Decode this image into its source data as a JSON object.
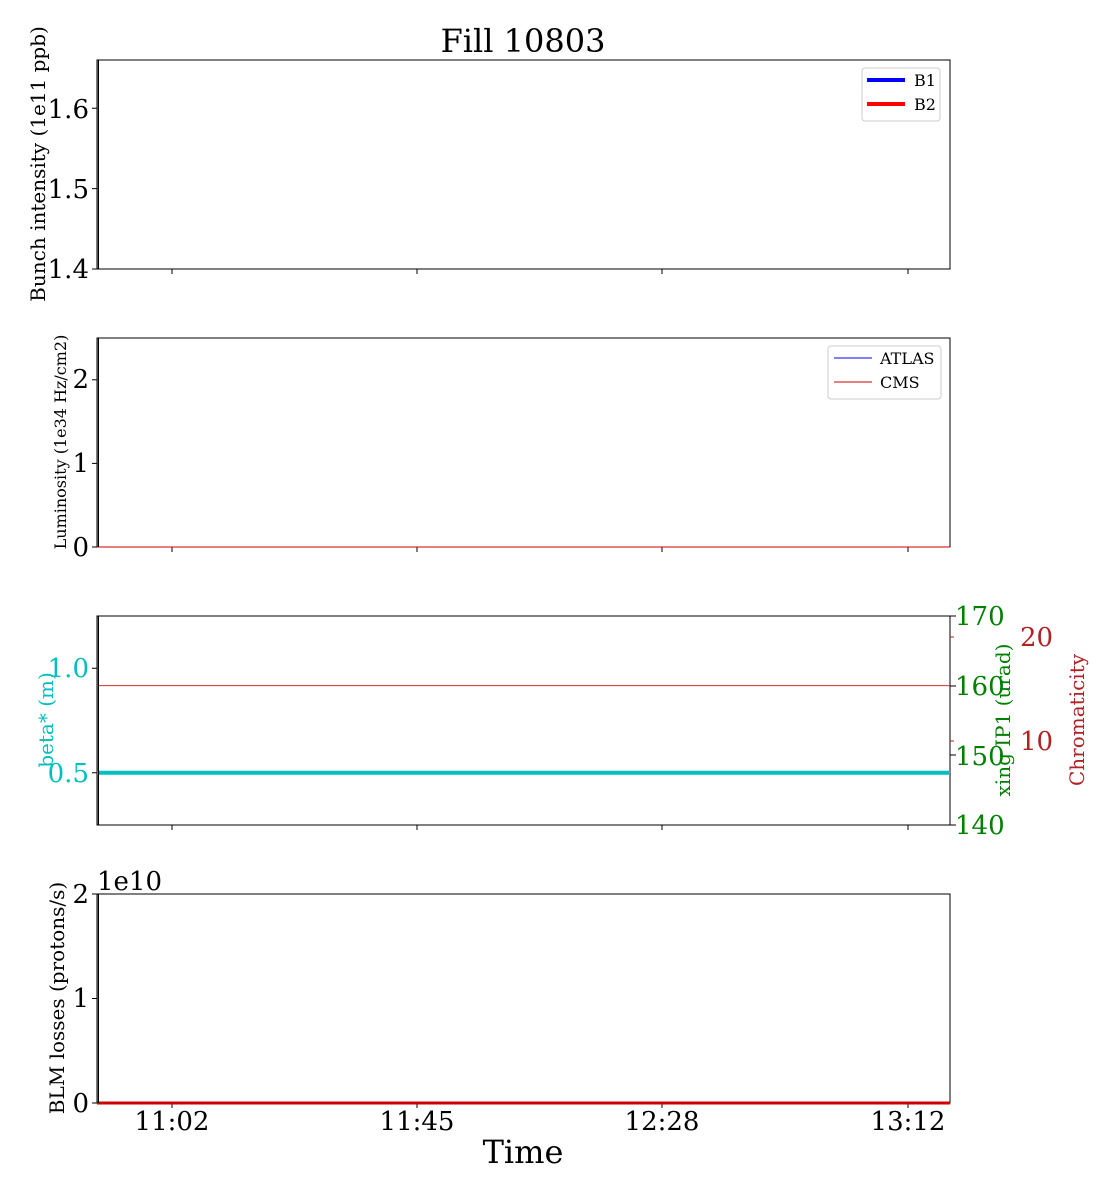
{
  "title": "Fill 10803",
  "xlabel": "Time",
  "x_ticks": [
    "11:02",
    "11:45",
    "12:28",
    "13:12"
  ],
  "chart_data": [
    {
      "type": "line",
      "ylabel": "Bunch intensity (1e11 ppb)",
      "ylim": [
        1.4,
        1.66
      ],
      "yticks": [
        "1.4",
        "1.5",
        "1.6"
      ],
      "legend": {
        "placement": "top-right",
        "entries": [
          {
            "name": "B1",
            "color": "#0000ff"
          },
          {
            "name": "B2",
            "color": "#ff0000"
          }
        ]
      },
      "series": [],
      "vline_time": "10:49"
    },
    {
      "type": "line",
      "ylabel": "Luminosity (1e34 Hz/cm2)",
      "ylim": [
        0,
        2.5
      ],
      "yticks": [
        "0",
        "1",
        "2"
      ],
      "legend": {
        "placement": "top-right",
        "entries": [
          {
            "name": "ATLAS",
            "color": "#0000ff"
          },
          {
            "name": "CMS",
            "color": "#cc0000"
          }
        ]
      },
      "series": [
        {
          "name": "ATLAS",
          "color": "#0000ff",
          "value": 0
        },
        {
          "name": "CMS",
          "color": "#cc0000",
          "value": 0
        }
      ],
      "vline_time": "10:49"
    },
    {
      "type": "line",
      "ylabel": "beta* (m)",
      "ylabel_color": "#00bfbf",
      "ylim": [
        0.25,
        1.25
      ],
      "yticks": [
        "0.5",
        "1.0"
      ],
      "right_axis_1": {
        "label": "xing IP1 (urad)",
        "color": "#008000",
        "ylim": [
          140,
          170
        ],
        "yticks": [
          "140",
          "150",
          "160",
          "170"
        ]
      },
      "right_axis_2": {
        "label": "Chromaticity",
        "color": "#b22222",
        "ticks": [
          "10",
          "20"
        ]
      },
      "series": [
        {
          "name": "beta*",
          "color": "#00bfbf",
          "value": 0.5
        },
        {
          "name": "xing IP1",
          "color": "#cc3333",
          "value": 160
        }
      ],
      "vline_time": "10:49"
    },
    {
      "type": "line",
      "ylabel": "BLM losses (protons/s)",
      "offset_text": "1e10",
      "ylim": [
        0,
        2
      ],
      "yticks": [
        "0",
        "1",
        "2"
      ],
      "series": [
        {
          "name": "BLM",
          "color": "#cc0000",
          "value": 0
        }
      ],
      "vline_time": "10:49"
    }
  ]
}
